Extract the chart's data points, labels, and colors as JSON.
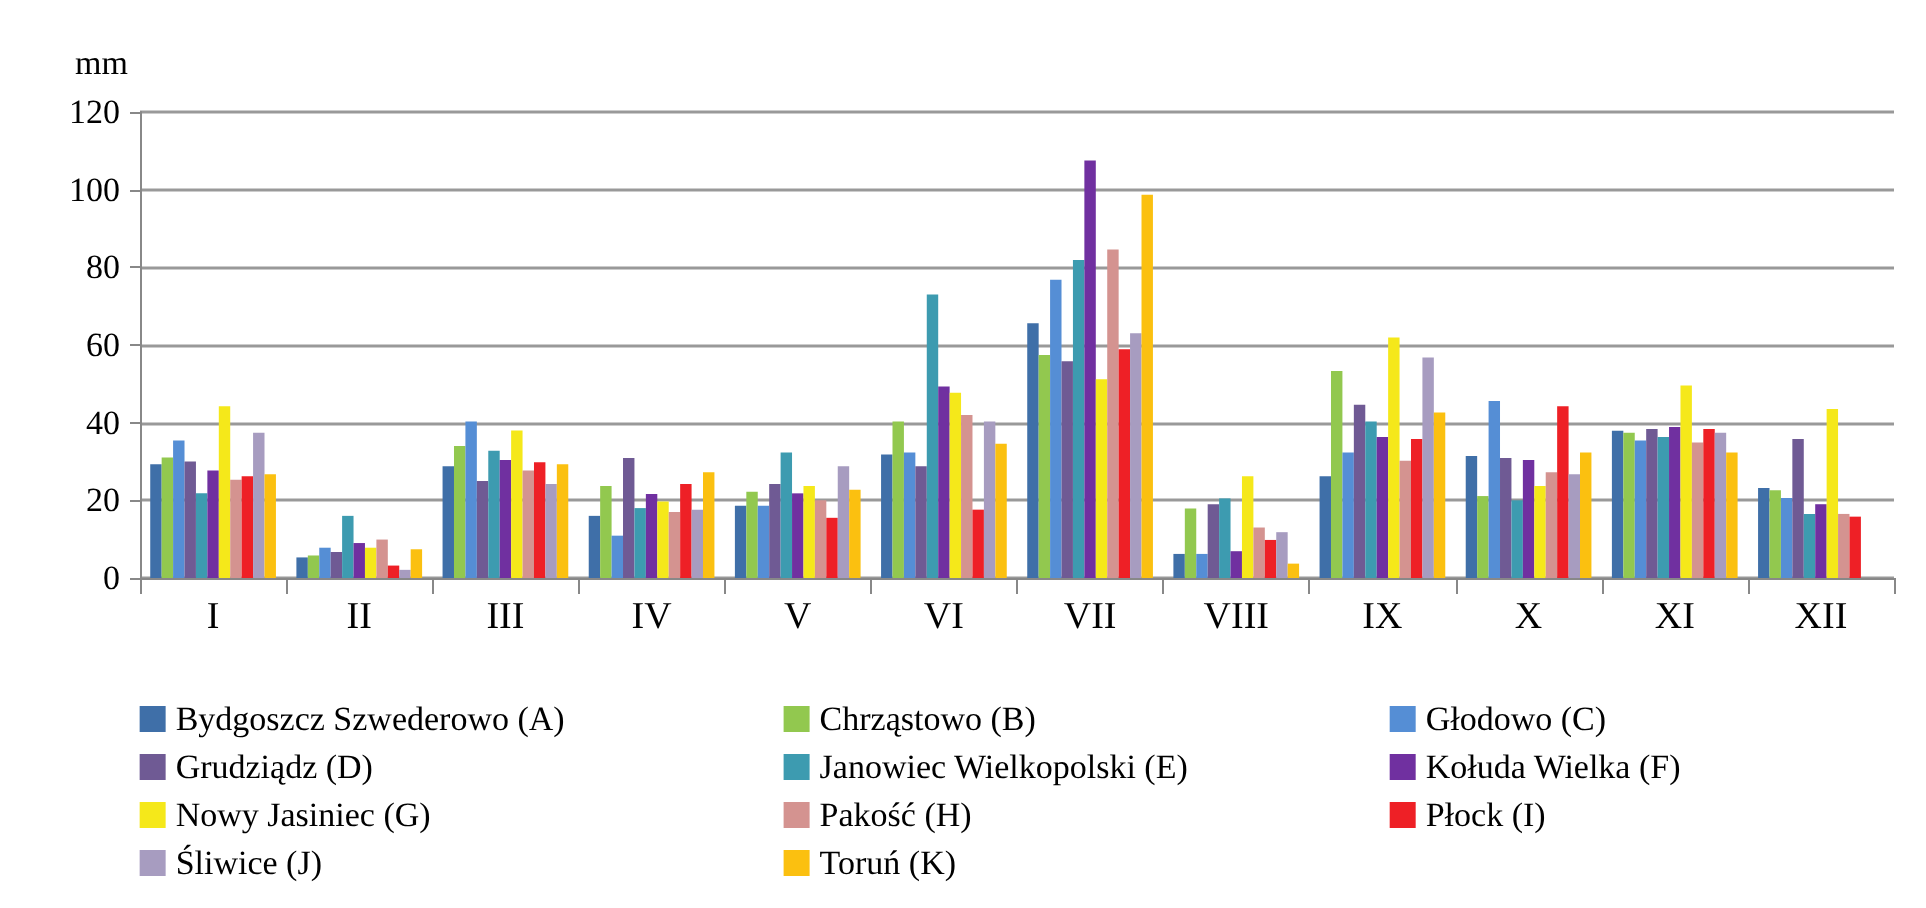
{
  "chart_data": {
    "type": "bar",
    "ylabel": "mm",
    "categories": [
      "I",
      "II",
      "III",
      "IV",
      "V",
      "VI",
      "VII",
      "VIII",
      "IX",
      "X",
      "XI",
      "XII"
    ],
    "ylim": [
      0,
      120
    ],
    "yticks": [
      0,
      20,
      40,
      60,
      80,
      100,
      120
    ],
    "grid": "y",
    "legend": "bottom",
    "series": [
      {
        "name": "Bydgoszcz Szwederowo (A)",
        "color": "#3f6fa8",
        "values": [
          29.3,
          5.3,
          28.8,
          16,
          18.6,
          31.8,
          65.6,
          6.2,
          26.2,
          31.4,
          37.9,
          23.2
        ]
      },
      {
        "name": "Chrząstowo (B)",
        "color": "#92c84f",
        "values": [
          31,
          5.8,
          34,
          23.7,
          22.2,
          40.3,
          57.4,
          17.9,
          53.3,
          21.1,
          37.4,
          22.6
        ]
      },
      {
        "name": "Głodowo (C)",
        "color": "#558ed5",
        "values": [
          35.4,
          7.8,
          40.3,
          10.9,
          18.6,
          32.3,
          76.8,
          6.2,
          32.3,
          45.6,
          35.4,
          20.6
        ]
      },
      {
        "name": "Grudziądz (D)",
        "color": "#6f5a94",
        "values": [
          30,
          6.7,
          25,
          30.9,
          24.2,
          28.8,
          55.8,
          19,
          44.6,
          30.9,
          38.4,
          35.8
        ]
      },
      {
        "name": "Janowiec Wielkopolski (E)",
        "color": "#3d9bb0",
        "values": [
          21.8,
          16,
          32.8,
          18,
          32.3,
          73,
          81.9,
          20.5,
          40.3,
          20,
          36.3,
          16.5
        ]
      },
      {
        "name": "Kołuda Wielka (F)",
        "color": "#7030a0",
        "values": [
          27.7,
          9,
          30.4,
          21.6,
          21.8,
          49.3,
          107.5,
          6.9,
          36.3,
          30.4,
          38.9,
          19
        ]
      },
      {
        "name": "Nowy Jasiniec (G)",
        "color": "#f5e81a",
        "values": [
          44.2,
          7.8,
          38,
          19.7,
          23.7,
          47.7,
          51.2,
          26.2,
          61.9,
          23.7,
          49.6,
          43.5
        ]
      },
      {
        "name": "Pakość (H)",
        "color": "#d49390",
        "values": [
          25.3,
          9.9,
          27.7,
          17,
          20,
          42,
          84.6,
          13,
          30.2,
          27.2,
          34.9,
          16.5
        ]
      },
      {
        "name": "Płock (I)",
        "color": "#ee2026",
        "values": [
          26.2,
          3.2,
          29.8,
          24.2,
          15.5,
          17.6,
          58.9,
          9.8,
          35.8,
          44.2,
          38.4,
          15.8
        ]
      },
      {
        "name": "Śliwice (J)",
        "color": "#a79cc0",
        "values": [
          37.4,
          2.1,
          24.2,
          17.6,
          28.8,
          40.3,
          63,
          11.8,
          56.8,
          26.7,
          37.4,
          null
        ]
      },
      {
        "name": "Toruń (K)",
        "color": "#fbc010",
        "values": [
          26.7,
          7.4,
          29.3,
          27.2,
          22.7,
          34.6,
          98.7,
          3.7,
          42.6,
          32.3,
          32.3,
          null
        ]
      }
    ]
  }
}
